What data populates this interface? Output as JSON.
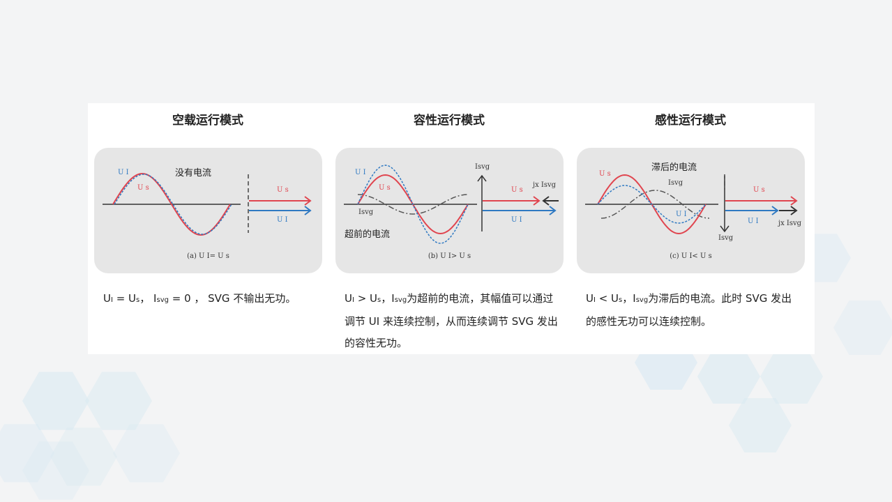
{
  "colors": {
    "us": "#e0454f",
    "ui": "#2f79c2",
    "isvg": "#555555",
    "panel": "#e6e6e6",
    "hexagon": "#d6e8f2"
  },
  "columns": [
    {
      "title": "空载运行模式",
      "wave_note": "没有电流",
      "labels": {
        "ui": "U I",
        "us": "U s",
        "us_arrow": "U s",
        "ui_arrow": "U I"
      },
      "caption": "(a) U I= U s",
      "desc": {
        "ui": "U",
        "ui_sub": "I",
        "eq": " = ",
        "us": "U",
        "us_sub": "s",
        "sep": "，",
        "i": "I",
        "i_sub": "svg",
        "rest": " = 0 ， SVG 不输出无功。"
      }
    },
    {
      "title": "容性运行模式",
      "wave_note": "超前的电流",
      "labels": {
        "ui": "U I",
        "us": "U s",
        "isvg": "Isvg",
        "isvg_axis": "Isvg",
        "jx": "jx Isvg",
        "us_arrow": "U s",
        "ui_arrow": "U I"
      },
      "caption": "(b) U I> U s",
      "desc": {
        "ui": "U",
        "ui_sub": "I",
        "eq": " > ",
        "us": "U",
        "us_sub": "s",
        "sep": "，",
        "i": "I",
        "i_sub": "svg",
        "rest": "为超前的电流，其幅值可以通过调节 UI 来连续控制，从而连续调节 SVG 发出的容性无功。"
      }
    },
    {
      "title": "感性运行模式",
      "wave_note": "滞后的电流",
      "labels": {
        "ui": "U I",
        "us": "U s",
        "isvg": "Isvg",
        "isvg_axis": "Isvg",
        "jx": "jx Isvg",
        "us_arrow": "U s",
        "ui_arrow": "U I"
      },
      "caption": "(c) U I< U s",
      "desc": {
        "ui": "U",
        "ui_sub": "I",
        "eq": " <  ",
        "us": "U",
        "us_sub": "s",
        "sep": "，",
        "i": "I",
        "i_sub": "svg",
        "rest": "为滞后的电流。此时 SVG 发出的感性无功可以连续控制。"
      }
    }
  ]
}
